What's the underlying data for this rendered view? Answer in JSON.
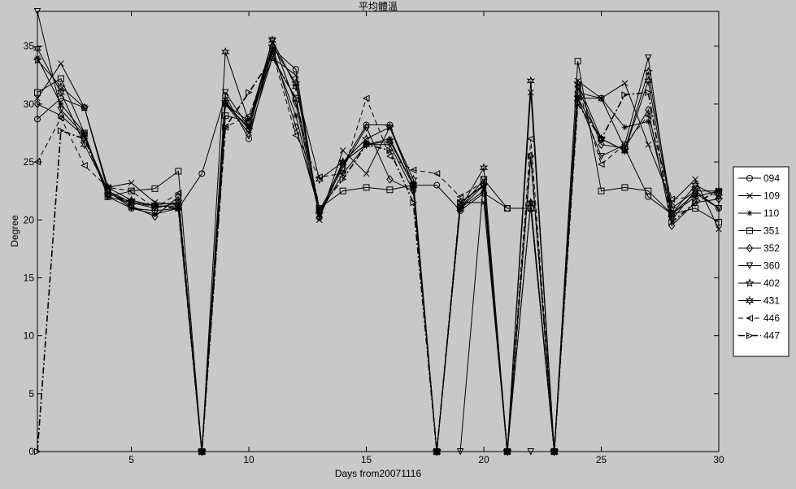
{
  "figure": {
    "background": "#c8c8c8"
  },
  "chart_data": {
    "type": "line",
    "title": "平均體溫",
    "xlabel": "Days from20071116",
    "ylabel": "Degree",
    "xlim": [
      1,
      30
    ],
    "ylim": [
      0,
      38
    ],
    "xticks": [
      5,
      10,
      15,
      20,
      25,
      30
    ],
    "yticks": [
      0,
      5,
      10,
      15,
      20,
      25,
      30,
      35
    ],
    "grid": false,
    "legend_position": "right",
    "x": [
      1,
      2,
      3,
      4,
      5,
      6,
      7,
      8,
      9,
      10,
      11,
      12,
      13,
      14,
      15,
      16,
      17,
      18,
      19,
      20,
      21,
      22,
      23,
      24,
      25,
      26,
      27,
      28,
      29,
      30
    ],
    "series": [
      {
        "name": "094",
        "marker": "circle",
        "dash": "solid",
        "values": [
          28.7,
          30.5,
          29.7,
          22.5,
          21.0,
          20.8,
          21.0,
          24.0,
          30.7,
          27.0,
          34.8,
          33.0,
          20.2,
          24.8,
          28.2,
          28.2,
          23.0,
          23.0,
          20.8,
          22.3,
          21.0,
          21.0,
          0,
          31.0,
          30.5,
          26.2,
          22.0,
          20.5,
          22.3,
          21.0
        ]
      },
      {
        "name": "109",
        "marker": "x",
        "dash": "solid",
        "values": [
          30.5,
          33.5,
          29.7,
          22.8,
          23.2,
          21.5,
          21.3,
          0,
          30.0,
          27.5,
          34.0,
          32.5,
          20.0,
          26.0,
          24.0,
          28.0,
          23.0,
          0,
          21.5,
          21.5,
          0,
          31.0,
          0,
          32.0,
          30.5,
          31.8,
          26.5,
          21.5,
          23.5,
          19.2
        ]
      },
      {
        "name": "110",
        "marker": "asterisk",
        "dash": "solid",
        "values": [
          34.0,
          30.0,
          27.5,
          22.0,
          21.0,
          20.5,
          21.0,
          0,
          30.0,
          28.0,
          34.5,
          29.0,
          20.5,
          25.0,
          26.5,
          27.0,
          23.0,
          0,
          21.0,
          22.5,
          0,
          21.5,
          0,
          30.5,
          30.5,
          28.0,
          28.5,
          20.5,
          22.0,
          22.5
        ]
      },
      {
        "name": "351",
        "marker": "square",
        "dash": "solid",
        "values": [
          31.0,
          32.2,
          27.5,
          22.0,
          22.5,
          22.7,
          24.2,
          0,
          29.0,
          28.5,
          34.0,
          30.5,
          21.0,
          22.5,
          22.8,
          22.6,
          23.0,
          0,
          21.0,
          23.5,
          21.0,
          21.0,
          0,
          33.7,
          22.5,
          22.8,
          22.5,
          20.5,
          21.0,
          19.8
        ]
      },
      {
        "name": "352",
        "marker": "diamond",
        "dash": "solid",
        "values": [
          30.0,
          29.0,
          27.2,
          22.5,
          21.2,
          20.3,
          22.0,
          0,
          30.0,
          28.5,
          35.0,
          28.0,
          20.8,
          24.5,
          28.0,
          23.5,
          22.5,
          0,
          21.5,
          23.0,
          0,
          25.5,
          0,
          31.5,
          26.5,
          26.2,
          29.5,
          19.5,
          21.5,
          21.8
        ]
      },
      {
        "name": "360",
        "marker": "triangle-down",
        "dash": "solid",
        "values": [
          38.0,
          29.5,
          27.3,
          22.0,
          21.5,
          21.0,
          21.5,
          0,
          31.0,
          28.0,
          35.5,
          30.0,
          20.5,
          24.0,
          26.5,
          26.5,
          22.5,
          0,
          0,
          23.5,
          0,
          0,
          0,
          30.5,
          25.5,
          26.5,
          34.0,
          20.0,
          22.5,
          21.0
        ]
      },
      {
        "name": "402",
        "marker": "pentagram",
        "dash": "solid",
        "values": [
          33.8,
          31.5,
          29.7,
          22.8,
          21.7,
          21.2,
          21.2,
          0,
          30.2,
          27.8,
          35.0,
          31.8,
          20.5,
          25.0,
          27.0,
          28.0,
          23.5,
          0,
          21.0,
          23.0,
          0,
          21.5,
          0,
          31.8,
          27.0,
          26.0,
          32.8,
          21.0,
          22.5,
          22.5
        ]
      },
      {
        "name": "431",
        "marker": "hexagram",
        "dash": "solid",
        "values": [
          34.8,
          31.0,
          26.5,
          22.5,
          21.5,
          21.3,
          21.5,
          0,
          34.5,
          28.5,
          35.5,
          31.5,
          23.5,
          25.0,
          26.5,
          26.8,
          23.0,
          0,
          21.0,
          24.5,
          0,
          32.0,
          0,
          30.5,
          27.0,
          26.0,
          32.0,
          20.5,
          23.0,
          22.0
        ]
      },
      {
        "name": "446",
        "marker": "triangle-left",
        "dash": "dashed",
        "values": [
          25.0,
          28.8,
          24.7,
          22.8,
          22.5,
          21.0,
          22.3,
          0,
          28.0,
          29.0,
          34.5,
          27.3,
          23.7,
          24.0,
          30.5,
          25.5,
          24.3,
          24.0,
          22.0,
          23.3,
          0,
          27.0,
          0,
          31.5,
          24.8,
          26.5,
          29.0,
          21.8,
          22.0,
          22.5
        ]
      },
      {
        "name": "447",
        "marker": "triangle-right",
        "dash": "dashdot",
        "values": [
          0,
          27.7,
          27.0,
          22.3,
          21.5,
          21.2,
          21.0,
          0,
          28.0,
          31.0,
          34.0,
          30.5,
          21.0,
          23.5,
          26.5,
          26.0,
          21.5,
          0,
          21.5,
          23.0,
          0,
          25.5,
          0,
          30.0,
          27.0,
          30.8,
          31.0,
          19.8,
          21.5,
          22.5
        ]
      }
    ]
  }
}
